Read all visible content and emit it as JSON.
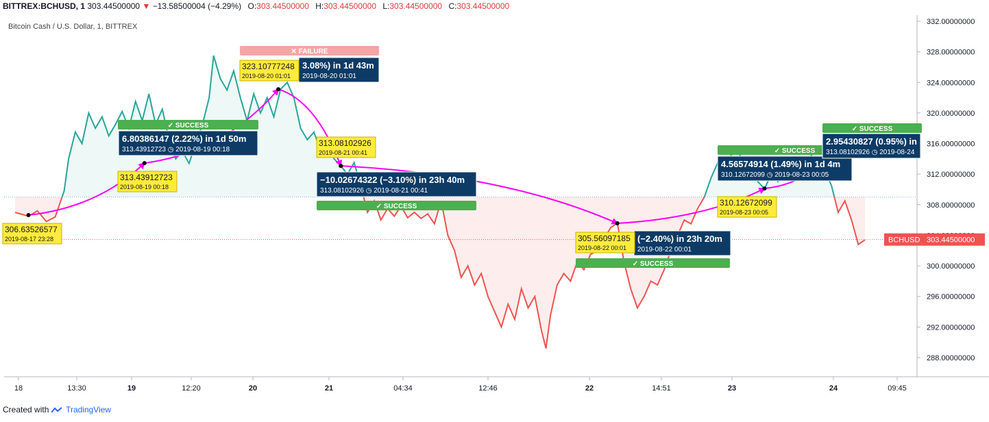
{
  "header": {
    "symbol": "BITTREX:BCHUSD, 1",
    "last": "303.44500000",
    "change": "−13.58500004 (−4.29%)",
    "o_label": "O:",
    "o": "303.44500000",
    "h_label": "H:",
    "h": "303.44500000",
    "l_label": "L:",
    "l": "303.44500000",
    "c_label": "C:",
    "c": "303.44500000"
  },
  "subtitle": "Bitcoin Cash / U.S. Dollar, 1, BITTREX",
  "footer": {
    "created_with": "Created with",
    "brand": "TradingView"
  },
  "colors": {
    "up": "#26a69a",
    "down": "#ef5350",
    "arrow": "#ff00ff",
    "success": "#4caf50",
    "failure": "#f4a6a6",
    "box": "#0d3b66",
    "yellow": "#ffeb3b"
  },
  "chart_data": {
    "type": "line",
    "ylim": [
      286,
      333
    ],
    "y_ticks": [
      "332.00000000",
      "328.00000000",
      "324.00000000",
      "320.00000000",
      "316.00000000",
      "312.00000000",
      "308.00000000",
      "304.00000000",
      "300.00000000",
      "296.00000000",
      "292.00000000",
      "288.00000000"
    ],
    "x_ticks": [
      {
        "label": "18",
        "bold": false
      },
      {
        "label": "13:30",
        "bold": false
      },
      {
        "label": "19",
        "bold": true
      },
      {
        "label": "12:20",
        "bold": false
      },
      {
        "label": "20",
        "bold": true
      },
      {
        "label": "21",
        "bold": true
      },
      {
        "label": "04:34",
        "bold": false
      },
      {
        "label": "12:46",
        "bold": false
      },
      {
        "label": "22",
        "bold": true
      },
      {
        "label": "14:51",
        "bold": false
      },
      {
        "label": "23",
        "bold": true
      },
      {
        "label": "24",
        "bold": true
      },
      {
        "label": "09:45",
        "bold": false
      }
    ],
    "baseline": 309,
    "last_price_label": "BCHUSD",
    "last_price": "303.44500000",
    "last_price_value": 303.445,
    "series": [
      {
        "x": 0,
        "y": 307.0
      },
      {
        "x": 6,
        "y": 306.5
      },
      {
        "x": 10,
        "y": 307.2
      },
      {
        "x": 14,
        "y": 305.8
      },
      {
        "x": 18,
        "y": 306.4
      },
      {
        "x": 22,
        "y": 309.8
      },
      {
        "x": 24,
        "y": 314.0
      },
      {
        "x": 27,
        "y": 317.5
      },
      {
        "x": 30,
        "y": 316.0
      },
      {
        "x": 33,
        "y": 320.0
      },
      {
        "x": 36,
        "y": 318.0
      },
      {
        "x": 39,
        "y": 319.5
      },
      {
        "x": 42,
        "y": 317.0
      },
      {
        "x": 45,
        "y": 318.5
      },
      {
        "x": 48,
        "y": 320.2
      },
      {
        "x": 51,
        "y": 318.0
      },
      {
        "x": 54,
        "y": 321.5
      },
      {
        "x": 57,
        "y": 319.0
      },
      {
        "x": 60,
        "y": 322.5
      },
      {
        "x": 63,
        "y": 318.5
      },
      {
        "x": 66,
        "y": 320.5
      },
      {
        "x": 69,
        "y": 316.5
      },
      {
        "x": 72,
        "y": 314.0
      },
      {
        "x": 75,
        "y": 315.0
      },
      {
        "x": 78,
        "y": 313.4
      },
      {
        "x": 81,
        "y": 316.0
      },
      {
        "x": 84,
        "y": 318.5
      },
      {
        "x": 87,
        "y": 322.0
      },
      {
        "x": 89,
        "y": 327.5
      },
      {
        "x": 92,
        "y": 324.5
      },
      {
        "x": 95,
        "y": 323.0
      },
      {
        "x": 98,
        "y": 325.5
      },
      {
        "x": 101,
        "y": 322.0
      },
      {
        "x": 104,
        "y": 319.0
      },
      {
        "x": 107,
        "y": 322.5
      },
      {
        "x": 110,
        "y": 320.0
      },
      {
        "x": 113,
        "y": 322.0
      },
      {
        "x": 116,
        "y": 319.5
      },
      {
        "x": 119,
        "y": 323.1
      },
      {
        "x": 122,
        "y": 324.0
      },
      {
        "x": 125,
        "y": 322.0
      },
      {
        "x": 128,
        "y": 318.0
      },
      {
        "x": 131,
        "y": 316.5
      },
      {
        "x": 134,
        "y": 317.5
      },
      {
        "x": 137,
        "y": 315.0
      },
      {
        "x": 140,
        "y": 316.2
      },
      {
        "x": 143,
        "y": 314.0
      },
      {
        "x": 146,
        "y": 313.1
      },
      {
        "x": 149,
        "y": 312.0
      },
      {
        "x": 152,
        "y": 313.5
      },
      {
        "x": 155,
        "y": 310.5
      },
      {
        "x": 158,
        "y": 307.0
      },
      {
        "x": 161,
        "y": 308.5
      },
      {
        "x": 164,
        "y": 306.0
      },
      {
        "x": 167,
        "y": 307.5
      },
      {
        "x": 170,
        "y": 306.5
      },
      {
        "x": 173,
        "y": 307.8
      },
      {
        "x": 176,
        "y": 306.3
      },
      {
        "x": 179,
        "y": 307.0
      },
      {
        "x": 182,
        "y": 306.2
      },
      {
        "x": 185,
        "y": 306.8
      },
      {
        "x": 188,
        "y": 305.5
      },
      {
        "x": 191,
        "y": 308.5
      },
      {
        "x": 194,
        "y": 304.0
      },
      {
        "x": 197,
        "y": 302.0
      },
      {
        "x": 200,
        "y": 298.5
      },
      {
        "x": 203,
        "y": 300.0
      },
      {
        "x": 206,
        "y": 297.5
      },
      {
        "x": 209,
        "y": 299.0
      },
      {
        "x": 212,
        "y": 296.0
      },
      {
        "x": 215,
        "y": 294.0
      },
      {
        "x": 218,
        "y": 292.0
      },
      {
        "x": 221,
        "y": 295.0
      },
      {
        "x": 224,
        "y": 293.0
      },
      {
        "x": 227,
        "y": 297.0
      },
      {
        "x": 230,
        "y": 294.5
      },
      {
        "x": 233,
        "y": 296.0
      },
      {
        "x": 236,
        "y": 291.5
      },
      {
        "x": 238,
        "y": 289.2
      },
      {
        "x": 240,
        "y": 293.5
      },
      {
        "x": 243,
        "y": 297.5
      },
      {
        "x": 246,
        "y": 299.0
      },
      {
        "x": 249,
        "y": 298.0
      },
      {
        "x": 252,
        "y": 300.5
      },
      {
        "x": 255,
        "y": 299.5
      },
      {
        "x": 258,
        "y": 301.5
      },
      {
        "x": 261,
        "y": 302.0
      },
      {
        "x": 264,
        "y": 303.5
      },
      {
        "x": 267,
        "y": 305.0
      },
      {
        "x": 270,
        "y": 305.6
      },
      {
        "x": 273,
        "y": 300.5
      },
      {
        "x": 276,
        "y": 297.0
      },
      {
        "x": 279,
        "y": 294.5
      },
      {
        "x": 282,
        "y": 296.0
      },
      {
        "x": 285,
        "y": 298.0
      },
      {
        "x": 288,
        "y": 297.5
      },
      {
        "x": 291,
        "y": 299.5
      },
      {
        "x": 294,
        "y": 302.0
      },
      {
        "x": 297,
        "y": 304.0
      },
      {
        "x": 300,
        "y": 306.0
      },
      {
        "x": 303,
        "y": 305.5
      },
      {
        "x": 306,
        "y": 307.5
      },
      {
        "x": 309,
        "y": 309.0
      },
      {
        "x": 312,
        "y": 311.5
      },
      {
        "x": 315,
        "y": 313.5
      },
      {
        "x": 318,
        "y": 312.5
      },
      {
        "x": 321,
        "y": 314.5
      },
      {
        "x": 324,
        "y": 315.2
      },
      {
        "x": 327,
        "y": 313.0
      },
      {
        "x": 330,
        "y": 314.0
      },
      {
        "x": 333,
        "y": 311.0
      },
      {
        "x": 336,
        "y": 310.1
      },
      {
        "x": 339,
        "y": 312.0
      },
      {
        "x": 342,
        "y": 311.0
      },
      {
        "x": 345,
        "y": 312.5
      },
      {
        "x": 348,
        "y": 311.5
      },
      {
        "x": 351,
        "y": 312.2
      },
      {
        "x": 354,
        "y": 313.0
      },
      {
        "x": 357,
        "y": 314.5
      },
      {
        "x": 360,
        "y": 313.1
      },
      {
        "x": 363,
        "y": 312.5
      },
      {
        "x": 366,
        "y": 310.5
      },
      {
        "x": 369,
        "y": 307.0
      },
      {
        "x": 372,
        "y": 308.5
      },
      {
        "x": 375,
        "y": 306.0
      },
      {
        "x": 378,
        "y": 302.8
      },
      {
        "x": 381,
        "y": 303.4
      }
    ],
    "x_total": 381,
    "trades": [
      {
        "from": {
          "x": 6,
          "y": 306.63526577
        },
        "to": {
          "x": 58,
          "y": 313.43912723
        }
      },
      {
        "from": {
          "x": 58,
          "y": 313.43912723
        },
        "to": {
          "x": 118,
          "y": 323.10777248
        }
      },
      {
        "from": {
          "x": 118,
          "y": 323.10777248
        },
        "to": {
          "x": 146,
          "y": 313.08102926
        }
      },
      {
        "from": {
          "x": 146,
          "y": 313.08102926
        },
        "to": {
          "x": 270,
          "y": 305.56097185
        }
      },
      {
        "from": {
          "x": 270,
          "y": 305.56097185
        },
        "to": {
          "x": 336,
          "y": 310.12672099
        }
      },
      {
        "from": {
          "x": 336,
          "y": 310.12672099
        },
        "to": {
          "x": 360,
          "y": 313.08102926
        }
      }
    ]
  },
  "annotations": {
    "yellow": [
      {
        "id": "y1",
        "line1": "306.63526577",
        "line2": "2019-08-17 23:28"
      },
      {
        "id": "y2",
        "line1": "313.43912723",
        "line2": "2019-08-19 00:18"
      },
      {
        "id": "y3",
        "line1": "323.10777248",
        "line2": "2019-08-20 01:01"
      },
      {
        "id": "y4",
        "line1": "313.08102926",
        "line2": "2019-08-21 00:41"
      },
      {
        "id": "y5",
        "line1": "305.56097185",
        "line2": "2019-08-22 00:01"
      },
      {
        "id": "y6",
        "line1": "310.12672099",
        "line2": "2019-08-23 00:05"
      }
    ],
    "boxes": [
      {
        "id": "b1",
        "line1": "6.80386147 (2.22%) in 1d 50m",
        "line2": "313.43912723  ◷ 2019-08-19  00:18"
      },
      {
        "id": "b2",
        "line1": "3.08%) in 1d 43m",
        "line2": "2019-08-20  01:01"
      },
      {
        "id": "b3",
        "line1": "−10.02674322 (−3.10%) in 23h 40m",
        "line2": "313.08102926  ◷ 2019-08-21  00:41"
      },
      {
        "id": "b4",
        "line1": "(−2.40%) in 23h 20m",
        "line2": "2019-08-22  00:01"
      },
      {
        "id": "b5",
        "line1": "4.56574914 (1.49%) in 1d 4m",
        "line2": "310.12672099  ◷ 2019-08-23  00:05"
      },
      {
        "id": "b6",
        "line1": "2.95430827 (0.95%) in",
        "line2": "313.08102926  ◷ 2019-08-24"
      }
    ],
    "badges": [
      {
        "id": "s1",
        "text": "✓ SUCCESS",
        "kind": "success"
      },
      {
        "id": "f1",
        "text": "✕ FAILURE",
        "kind": "failure"
      },
      {
        "id": "s2",
        "text": "✓ SUCCESS",
        "kind": "success"
      },
      {
        "id": "s3",
        "text": "✓ SUCCESS",
        "kind": "success"
      },
      {
        "id": "s4",
        "text": "✓ SUCCESS",
        "kind": "success"
      },
      {
        "id": "s5",
        "text": "✓ SUCCESS",
        "kind": "success"
      }
    ]
  }
}
